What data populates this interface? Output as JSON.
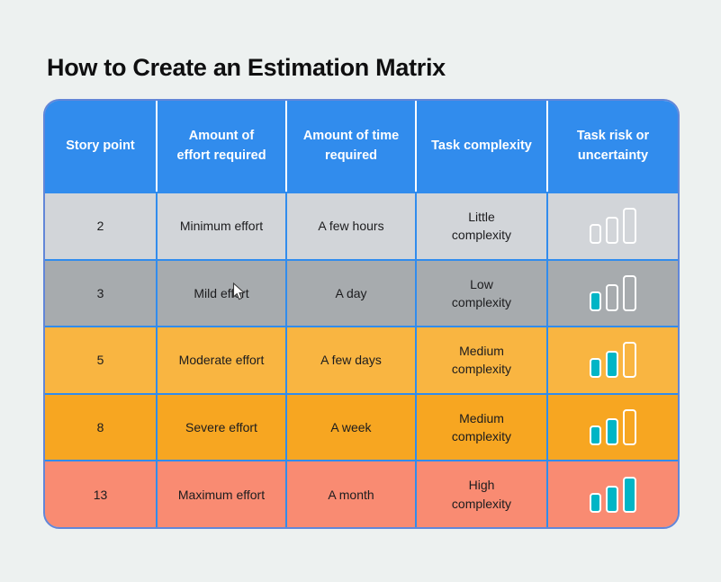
{
  "page": {
    "title": "How to Create an Estimation Matrix",
    "background_color": "#edf1f0"
  },
  "table": {
    "header_bg_color": "#318ced",
    "grid_line_color": "#318ced",
    "outer_border_color": "#6286d8",
    "bar_fill_color": "#00b5c6",
    "text_color": "#1c1c1e",
    "columns": [
      "Story point",
      "Amount of\neffort required",
      "Amount of time\nrequired",
      "Task complexity",
      "Task risk or\nuncertainty"
    ],
    "rows": [
      {
        "story_point": "2",
        "effort": "Minimum effort",
        "time": "A few hours",
        "complexity": "Little\ncomplexity",
        "risk_level": 0,
        "risk_bars_total": 3,
        "bg": "#d2d5d9"
      },
      {
        "story_point": "3",
        "effort": "Mild effort",
        "time": "A day",
        "complexity": "Low\ncomplexity",
        "risk_level": 1,
        "risk_bars_total": 3,
        "bg": "#a7abae"
      },
      {
        "story_point": "5",
        "effort": "Moderate effort",
        "time": "A few days",
        "complexity": "Medium\ncomplexity",
        "risk_level": 2,
        "risk_bars_total": 3,
        "bg": "#f9b541"
      },
      {
        "story_point": "8",
        "effort": "Severe effort",
        "time": "A week",
        "complexity": "Medium\ncomplexity",
        "risk_level": 2,
        "risk_bars_total": 3,
        "bg": "#f7a621"
      },
      {
        "story_point": "13",
        "effort": "Maximum effort",
        "time": "A month",
        "complexity": "High\ncomplexity",
        "risk_level": 3,
        "risk_bars_total": 3,
        "bg": "#f98b72"
      }
    ]
  }
}
